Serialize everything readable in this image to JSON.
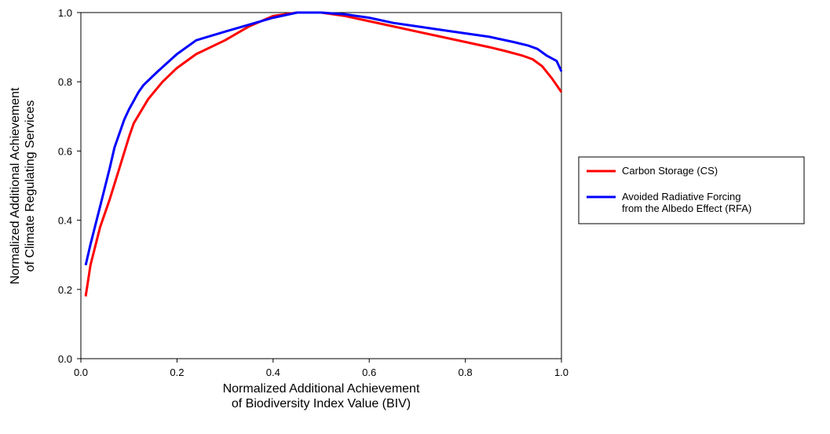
{
  "chart_data": {
    "type": "line",
    "title": "",
    "xlabel_lines": [
      "Normalized Additional Achievement",
      "of Biodiversity Index Value (BIV)"
    ],
    "ylabel_lines": [
      "Normalized Additional Achievement",
      "of Climate Regulating Services"
    ],
    "xlim": [
      0.0,
      1.0
    ],
    "ylim": [
      0.0,
      1.0
    ],
    "x_ticks": [
      0.0,
      0.2,
      0.4,
      0.6,
      0.8,
      1.0
    ],
    "y_ticks": [
      0.0,
      0.2,
      0.4,
      0.6,
      0.8,
      1.0
    ],
    "x_tick_labels": [
      "0.0",
      "0.2",
      "0.4",
      "0.6",
      "0.8",
      "1.0"
    ],
    "y_tick_labels": [
      "0.0",
      "0.2",
      "0.4",
      "0.6",
      "0.8",
      "1.0"
    ],
    "grid": false,
    "legend_position": "right",
    "series": [
      {
        "name_lines": [
          "Carbon Storage (CS)"
        ],
        "color": "#ff0000",
        "points": [
          [
            0.01,
            0.18
          ],
          [
            0.02,
            0.27
          ],
          [
            0.04,
            0.38
          ],
          [
            0.06,
            0.46
          ],
          [
            0.08,
            0.55
          ],
          [
            0.1,
            0.64
          ],
          [
            0.11,
            0.68
          ],
          [
            0.14,
            0.75
          ],
          [
            0.17,
            0.8
          ],
          [
            0.2,
            0.84
          ],
          [
            0.24,
            0.88
          ],
          [
            0.3,
            0.92
          ],
          [
            0.35,
            0.96
          ],
          [
            0.4,
            0.99
          ],
          [
            0.45,
            1.0
          ],
          [
            0.5,
            1.0
          ],
          [
            0.55,
            0.99
          ],
          [
            0.6,
            0.975
          ],
          [
            0.65,
            0.96
          ],
          [
            0.7,
            0.945
          ],
          [
            0.75,
            0.93
          ],
          [
            0.8,
            0.915
          ],
          [
            0.85,
            0.9
          ],
          [
            0.88,
            0.89
          ],
          [
            0.92,
            0.875
          ],
          [
            0.94,
            0.865
          ],
          [
            0.96,
            0.845
          ],
          [
            0.98,
            0.81
          ],
          [
            1.0,
            0.77
          ]
        ]
      },
      {
        "name_lines": [
          "Avoided Radiative Forcing",
          "from the Albedo Effect (RFA)"
        ],
        "color": "#0000ff",
        "points": [
          [
            0.01,
            0.27
          ],
          [
            0.02,
            0.33
          ],
          [
            0.04,
            0.44
          ],
          [
            0.06,
            0.55
          ],
          [
            0.07,
            0.61
          ],
          [
            0.09,
            0.69
          ],
          [
            0.1,
            0.72
          ],
          [
            0.12,
            0.77
          ],
          [
            0.13,
            0.79
          ],
          [
            0.16,
            0.83
          ],
          [
            0.2,
            0.88
          ],
          [
            0.24,
            0.92
          ],
          [
            0.3,
            0.945
          ],
          [
            0.35,
            0.965
          ],
          [
            0.4,
            0.985
          ],
          [
            0.45,
            1.0
          ],
          [
            0.5,
            1.0
          ],
          [
            0.55,
            0.995
          ],
          [
            0.6,
            0.985
          ],
          [
            0.65,
            0.97
          ],
          [
            0.7,
            0.96
          ],
          [
            0.75,
            0.95
          ],
          [
            0.8,
            0.94
          ],
          [
            0.85,
            0.93
          ],
          [
            0.9,
            0.915
          ],
          [
            0.93,
            0.905
          ],
          [
            0.95,
            0.895
          ],
          [
            0.97,
            0.875
          ],
          [
            0.99,
            0.86
          ],
          [
            1.0,
            0.83
          ]
        ]
      }
    ]
  }
}
